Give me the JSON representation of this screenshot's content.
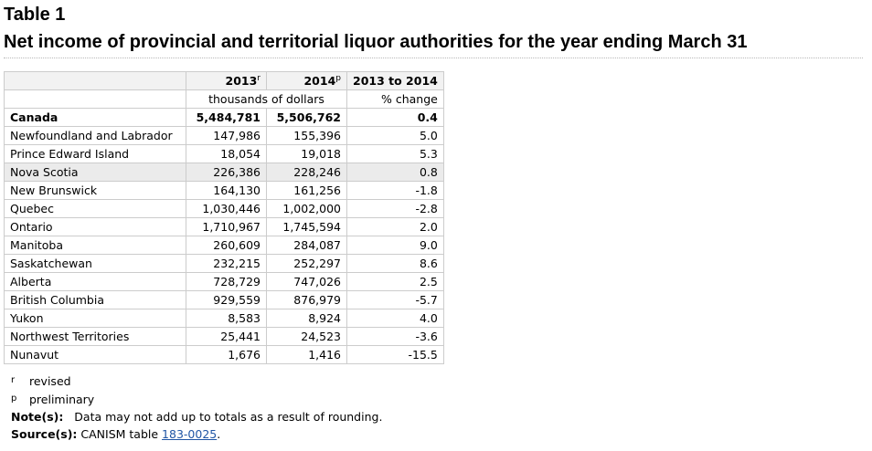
{
  "header": {
    "label": "Table 1",
    "title": "Net income of provincial and territorial liquor authorities for the year ending March 31"
  },
  "table": {
    "columns": [
      {
        "year": "2013",
        "flag": "r"
      },
      {
        "year": "2014",
        "flag": "p"
      },
      {
        "label": "2013 to 2014"
      }
    ],
    "units": {
      "dollars": "thousands of dollars",
      "change": "% change"
    },
    "rows": [
      {
        "name": "Canada",
        "v2013": "5,484,781",
        "v2014": "5,506,762",
        "change": "0.4"
      },
      {
        "name": "Newfoundland and Labrador",
        "v2013": "147,986",
        "v2014": "155,396",
        "change": "5.0"
      },
      {
        "name": "Prince Edward Island",
        "v2013": "18,054",
        "v2014": "19,018",
        "change": "5.3"
      },
      {
        "name": "Nova Scotia",
        "v2013": "226,386",
        "v2014": "228,246",
        "change": "0.8"
      },
      {
        "name": "New Brunswick",
        "v2013": "164,130",
        "v2014": "161,256",
        "change": "-1.8"
      },
      {
        "name": "Quebec",
        "v2013": "1,030,446",
        "v2014": "1,002,000",
        "change": "-2.8"
      },
      {
        "name": "Ontario",
        "v2013": "1,710,967",
        "v2014": "1,745,594",
        "change": "2.0"
      },
      {
        "name": "Manitoba",
        "v2013": "260,609",
        "v2014": "284,087",
        "change": "9.0"
      },
      {
        "name": "Saskatchewan",
        "v2013": "232,215",
        "v2014": "252,297",
        "change": "8.6"
      },
      {
        "name": "Alberta",
        "v2013": "728,729",
        "v2014": "747,026",
        "change": "2.5"
      },
      {
        "name": "British Columbia",
        "v2013": "929,559",
        "v2014": "876,979",
        "change": "-5.7"
      },
      {
        "name": "Yukon",
        "v2013": "8,583",
        "v2014": "8,924",
        "change": "4.0"
      },
      {
        "name": "Northwest Territories",
        "v2013": "25,441",
        "v2014": "24,523",
        "change": "-3.6"
      },
      {
        "name": "Nunavut",
        "v2013": "1,676",
        "v2014": "1,416",
        "change": "-15.5"
      }
    ]
  },
  "footnotes": {
    "revised": {
      "mark": "r",
      "text": "revised"
    },
    "preliminary": {
      "mark": "p",
      "text": "preliminary"
    },
    "note": {
      "label": "Note(s):",
      "text": "Data may not add up to totals as a result of rounding."
    },
    "source": {
      "label": "Source(s):",
      "prefix": "CANISM table",
      "link_text": "183-0025",
      "suffix": "."
    }
  }
}
